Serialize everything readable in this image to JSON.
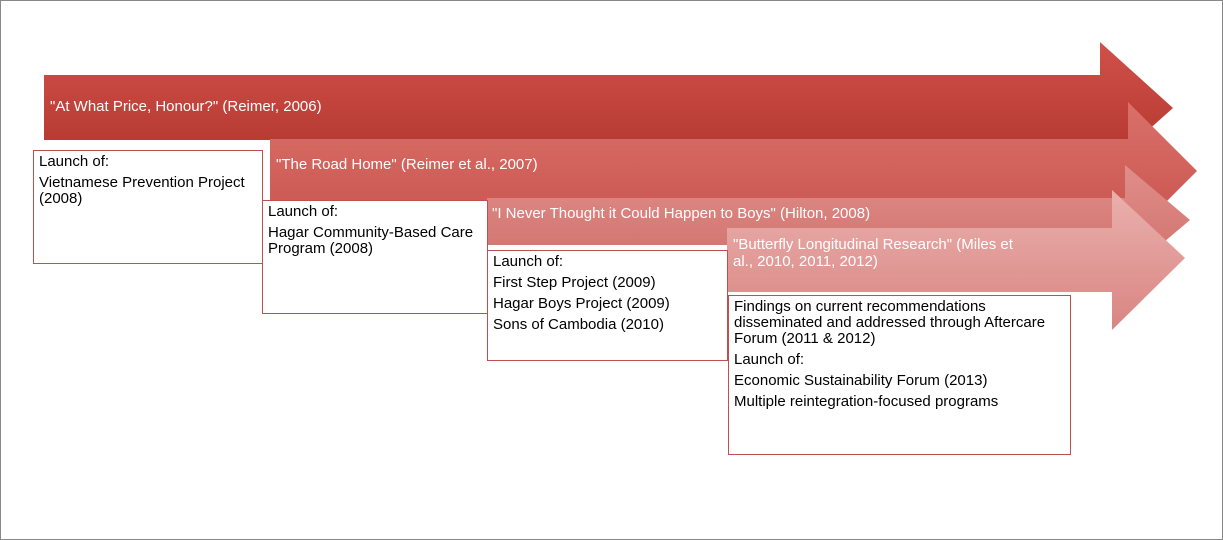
{
  "arrows": [
    {
      "label": "\"At What Price, Honour?\" (Reimer, 2006)"
    },
    {
      "label": "\"The Road Home\" (Reimer et al., 2007)"
    },
    {
      "label": "\"I Never Thought it Could Happen to Boys\" (Hilton, 2008)"
    },
    {
      "label": "\"Butterfly Longitudinal Research\" (Miles et al., 2010, 2011, 2012)"
    }
  ],
  "boxes": [
    {
      "lines": [
        "Launch of:",
        "Vietnamese Prevention Project (2008)"
      ]
    },
    {
      "lines": [
        "Launch of:",
        "Hagar Community-Based Care Program (2008)"
      ]
    },
    {
      "lines": [
        "Launch of:",
        "First Step Project (2009)",
        "Hagar Boys Project (2009)",
        "Sons of Cambodia (2010)"
      ]
    },
    {
      "lines": [
        "Findings on current recommendations disseminated and addressed through Aftercare Forum (2011 & 2012)",
        "Launch of:",
        "Economic Sustainability Forum (2013)",
        "Multiple reintegration-focused programs"
      ]
    }
  ]
}
